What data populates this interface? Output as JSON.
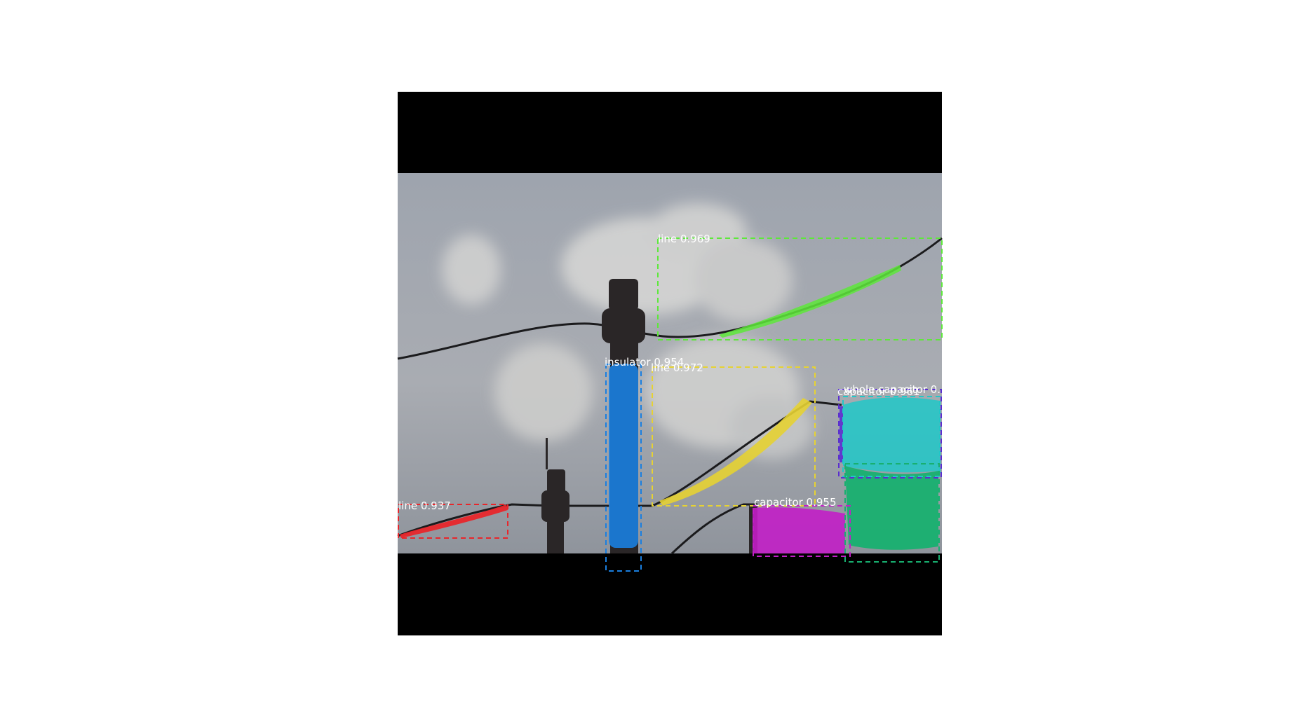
{
  "detections": [
    {
      "label": "line 0.969",
      "color": "#5de83a"
    },
    {
      "label": "insulator 0.954",
      "color": "#1a7fe0"
    },
    {
      "label": "line 0.972",
      "color": "#e6d233"
    },
    {
      "label": "whole capacitor 0.",
      "color": "#5a2fd0"
    },
    {
      "label": "capacitor 0.961",
      "color": "#20c8c8"
    },
    {
      "label": "line 0.937",
      "color": "#e8262b"
    },
    {
      "label": "capacitor 0.955",
      "color": "#c21ec7"
    },
    {
      "label": "capacitor",
      "color": "#18b070"
    }
  ]
}
